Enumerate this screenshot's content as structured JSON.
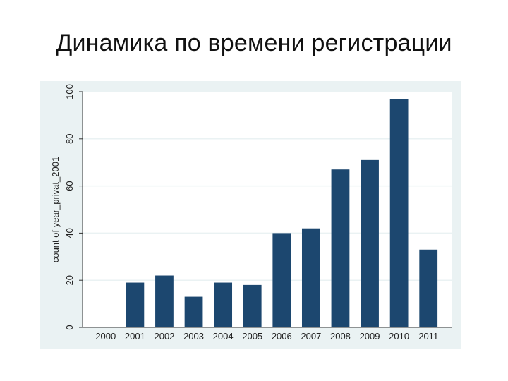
{
  "slide": {
    "title": "Динамика по времени регистрации"
  },
  "chart_data": {
    "type": "bar",
    "title": "",
    "xlabel": "",
    "ylabel": "count of year_privat_2001",
    "categories": [
      "2000",
      "2001",
      "2002",
      "2003",
      "2004",
      "2005",
      "2006",
      "2007",
      "2008",
      "2009",
      "2010",
      "2011"
    ],
    "values": [
      0,
      19,
      22,
      13,
      19,
      18,
      40,
      42,
      67,
      71,
      97,
      33
    ],
    "ylim": [
      0,
      100
    ],
    "yticks": [
      0,
      20,
      40,
      60,
      80,
      100
    ],
    "grid": true,
    "legend": "none",
    "colors": {
      "bar": "#1c476f",
      "panel_background": "#eaf2f3",
      "plot_background": "#ffffff",
      "gridline": "#eaf2f3",
      "axis": "#333333"
    }
  }
}
